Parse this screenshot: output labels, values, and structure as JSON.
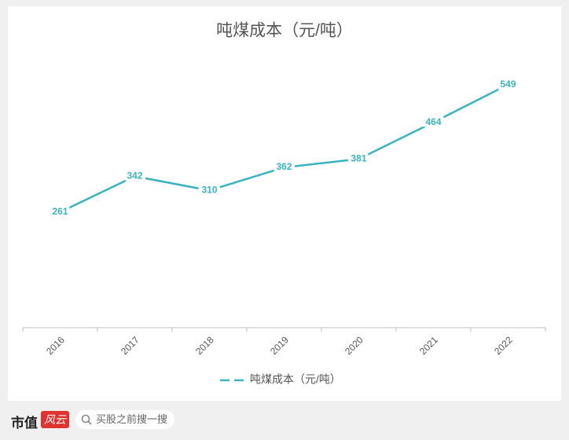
{
  "chart_data": {
    "type": "line",
    "title": "吨煤成本（元/吨）",
    "categories": [
      "2016",
      "2017",
      "2018",
      "2019",
      "2020",
      "2021",
      "2022"
    ],
    "series": [
      {
        "name": "吨煤成本（元/吨）",
        "color": "#3ab3c0",
        "values": [
          261,
          342,
          310,
          362,
          381,
          464,
          549
        ]
      }
    ],
    "ylim": [
      0,
      600
    ],
    "legend": "bottom"
  },
  "footer": {
    "brand": "市值",
    "logo": "风云",
    "search": "买股之前搜一搜"
  }
}
